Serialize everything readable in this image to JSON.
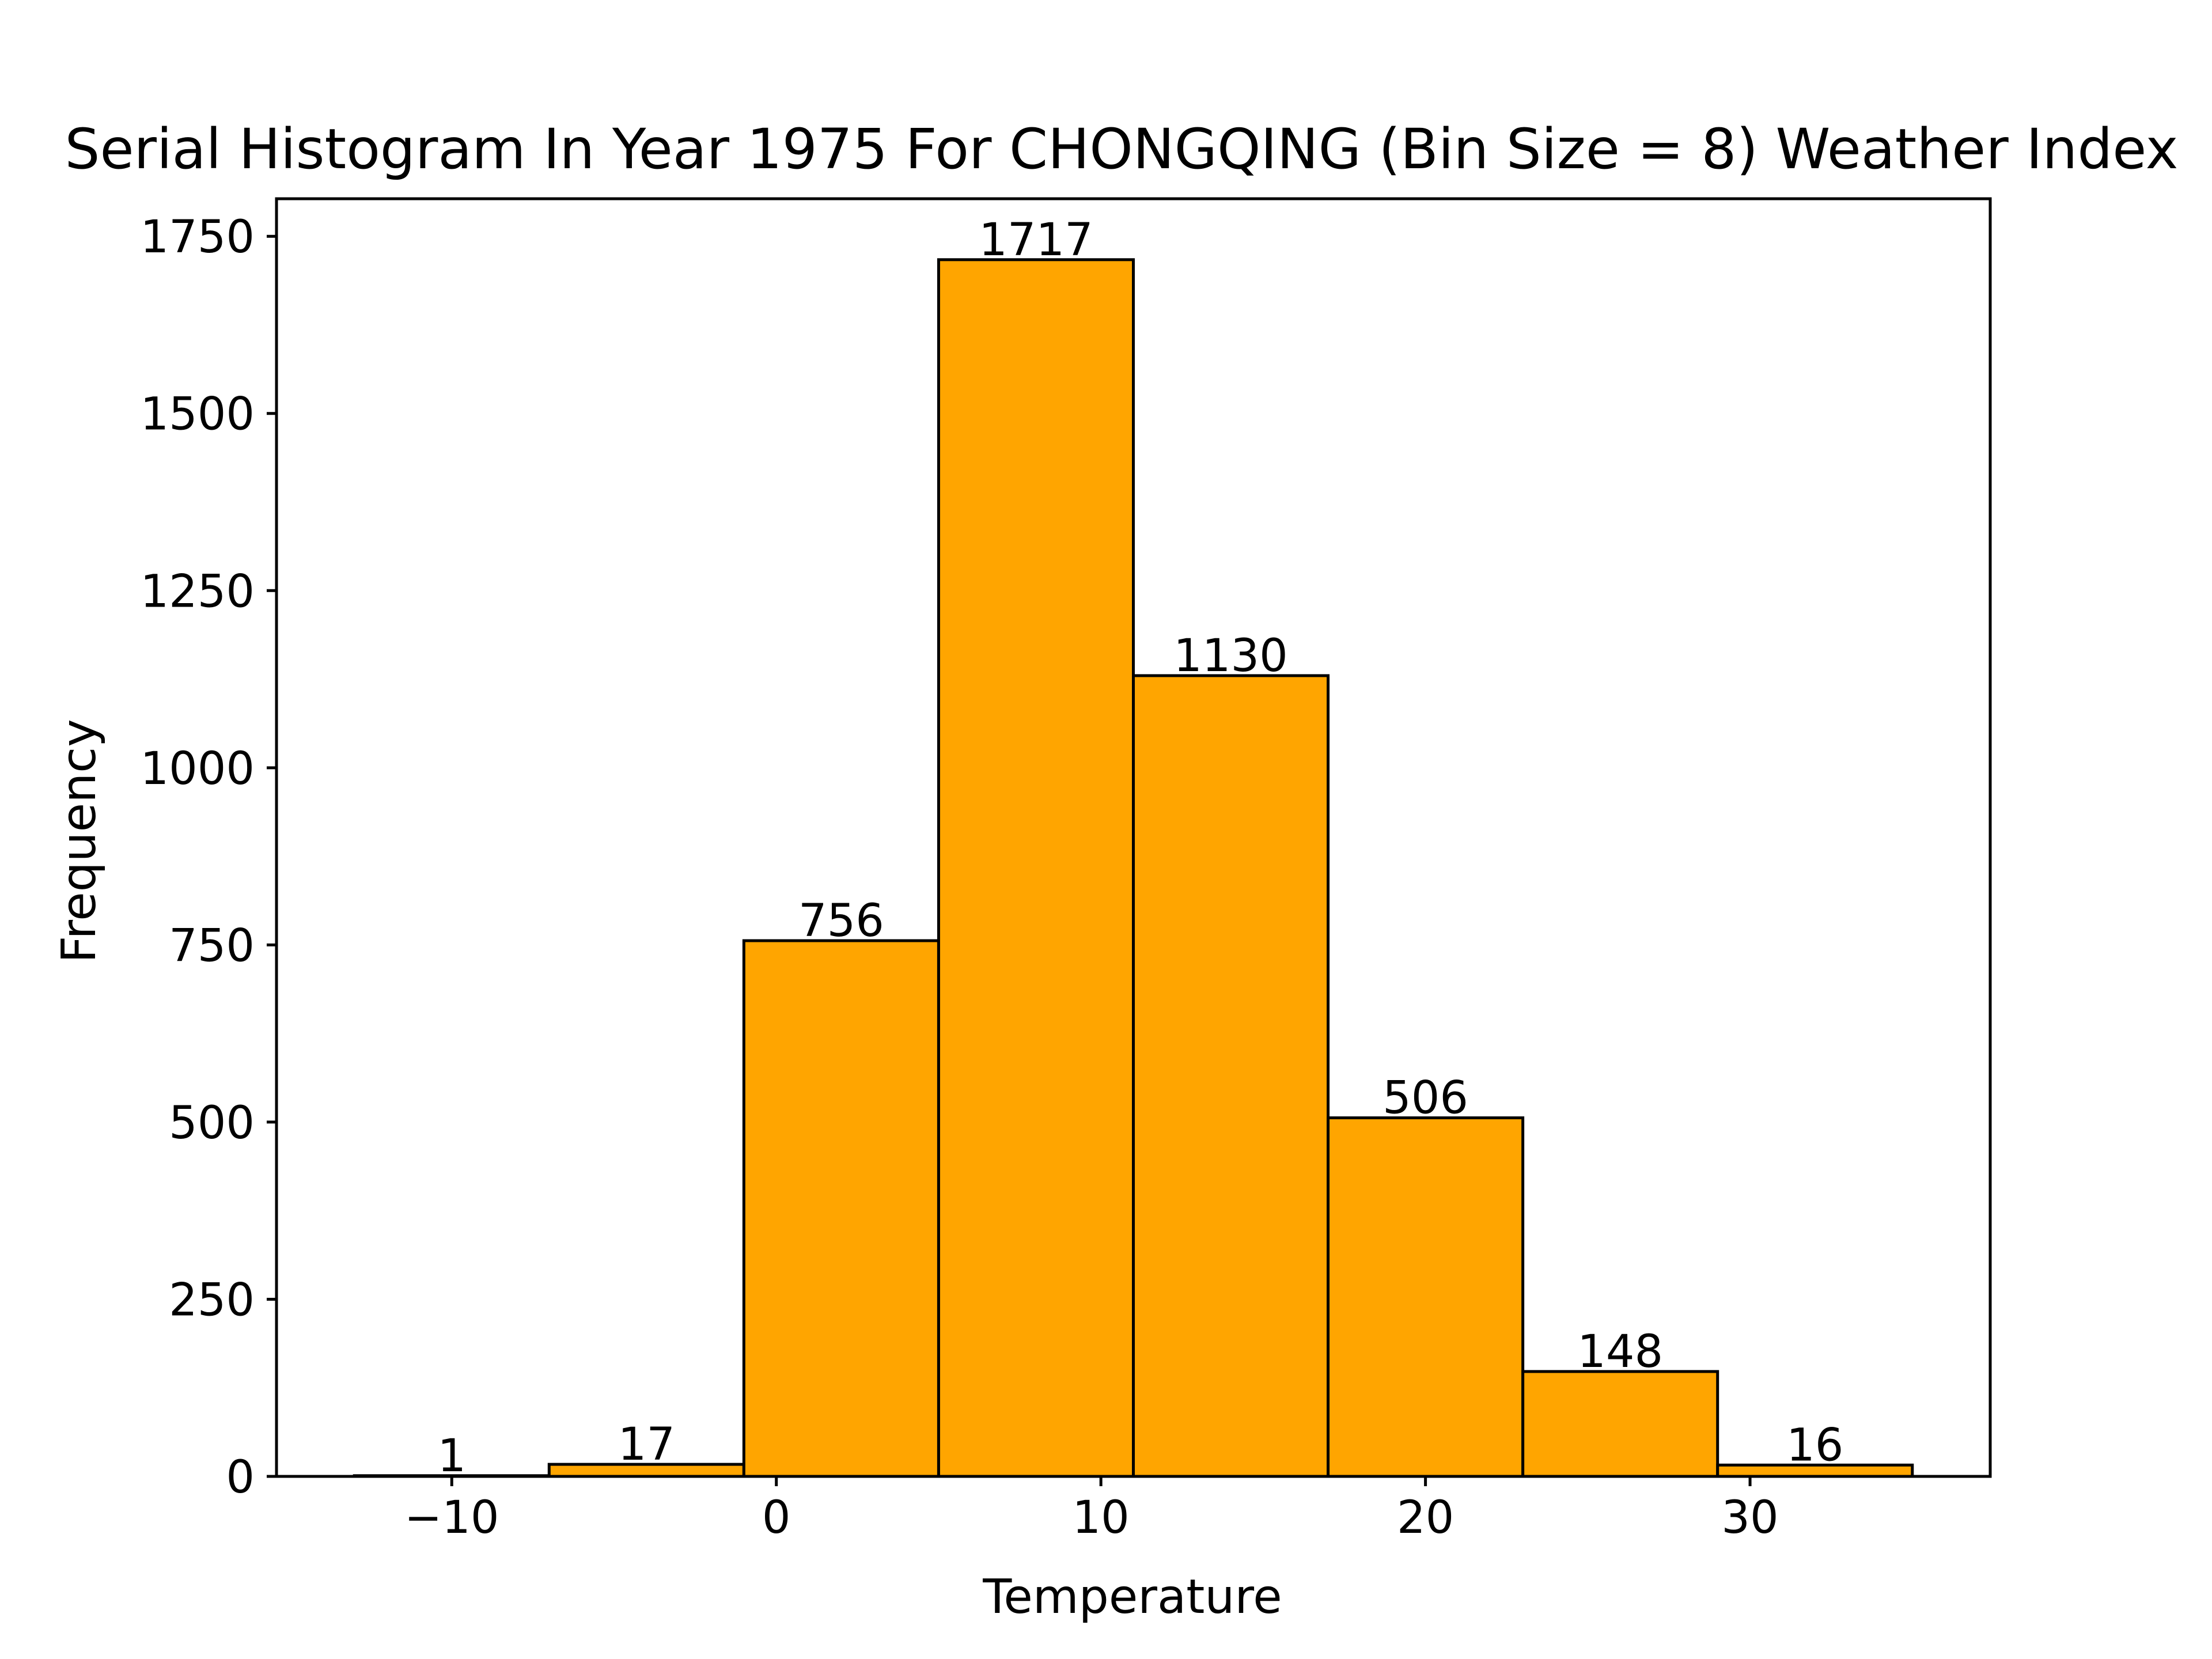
{
  "chart_data": {
    "type": "bar",
    "title": "Serial Histogram In Year 1975 For CHONGQING (Bin Size = 8) Weather Index",
    "xlabel": "Temperature",
    "ylabel": "Frequency",
    "bins": [
      {
        "x0": -13,
        "x1": -7,
        "value": 1
      },
      {
        "x0": -7,
        "x1": -1,
        "value": 17
      },
      {
        "x0": -1,
        "x1": 5,
        "value": 756
      },
      {
        "x0": 5,
        "x1": 11,
        "value": 1717
      },
      {
        "x0": 11,
        "x1": 17,
        "value": 1130
      },
      {
        "x0": 17,
        "x1": 23,
        "value": 506
      },
      {
        "x0": 23,
        "x1": 29,
        "value": 148
      },
      {
        "x0": 29,
        "x1": 35,
        "value": 16
      }
    ],
    "xlim": [
      -15.4,
      37.4
    ],
    "ylim": [
      0,
      1803
    ],
    "x_ticks": [
      -10,
      0,
      10,
      20,
      30
    ],
    "x_tick_labels": [
      "−10",
      "0",
      "10",
      "20",
      "30"
    ],
    "y_ticks": [
      0,
      250,
      500,
      750,
      1000,
      1250,
      1500,
      1750
    ],
    "y_tick_labels": [
      "0",
      "250",
      "500",
      "750",
      "1000",
      "1250",
      "1500",
      "1750"
    ],
    "bar_color": "#FFA500",
    "edge_color": "#000000",
    "grid": false,
    "legend": "none"
  }
}
